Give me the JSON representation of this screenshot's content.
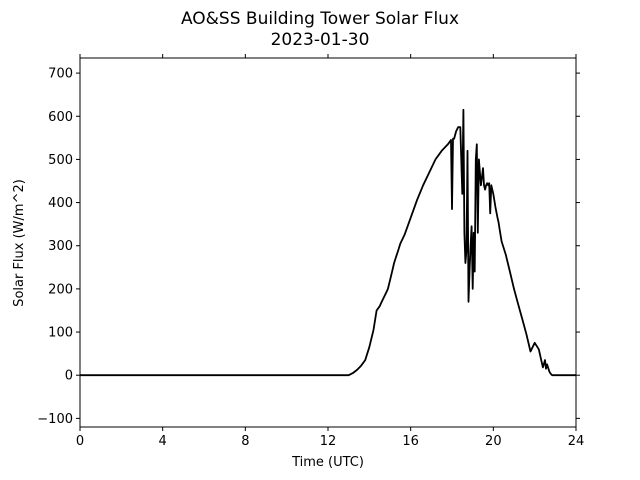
{
  "chart_data": {
    "type": "line",
    "title": "AO&SS Building Tower Solar Flux",
    "subtitle": "2023-01-30",
    "xlabel": "Time (UTC)",
    "ylabel": "Solar Flux (W/m^2)",
    "xlim": [
      0,
      24
    ],
    "ylim": [
      -120,
      735
    ],
    "xticks": [
      0,
      4,
      8,
      12,
      16,
      20,
      24
    ],
    "yticks": [
      -100,
      0,
      100,
      200,
      300,
      400,
      500,
      600,
      700
    ],
    "grid": false,
    "line_color": "#000000",
    "series": [
      {
        "x": [
          0,
          12.0,
          13.0,
          13.2,
          13.4,
          13.6,
          13.8,
          14.0,
          14.2,
          14.35,
          14.5,
          14.6,
          14.7,
          14.8,
          14.9,
          15.0,
          15.1,
          15.2,
          15.3,
          15.4,
          15.5,
          15.7,
          16.0,
          16.3,
          16.6,
          16.9,
          17.2,
          17.5,
          17.8,
          17.95,
          18.0,
          18.05,
          18.1,
          18.2,
          18.3,
          18.4,
          18.5,
          18.55,
          18.6,
          18.65,
          18.7,
          18.75,
          18.8,
          18.85,
          18.9,
          18.95,
          19.0,
          19.05,
          19.1,
          19.15,
          19.2,
          19.25,
          19.3,
          19.35,
          19.4,
          19.45,
          19.5,
          19.55,
          19.6,
          19.65,
          19.7,
          19.75,
          19.8,
          19.85,
          19.9,
          20.0,
          20.1,
          20.2,
          20.25,
          20.3,
          20.4,
          20.6,
          20.8,
          21.0,
          21.2,
          21.4,
          21.6,
          21.8,
          22.0,
          22.2,
          22.4,
          22.5,
          22.55,
          22.6,
          22.7,
          22.75,
          22.8,
          22.85,
          22.9,
          23.0,
          23.2,
          24.0
        ],
        "y": [
          0,
          0,
          0,
          5,
          12,
          22,
          35,
          65,
          105,
          150,
          160,
          170,
          180,
          190,
          200,
          220,
          240,
          260,
          275,
          290,
          305,
          325,
          365,
          405,
          440,
          470,
          500,
          520,
          535,
          545,
          385,
          548,
          548,
          565,
          575,
          575,
          420,
          615,
          330,
          260,
          290,
          520,
          170,
          245,
          300,
          345,
          200,
          330,
          240,
          500,
          535,
          330,
          500,
          470,
          440,
          460,
          480,
          440,
          430,
          440,
          445,
          440,
          445,
          375,
          440,
          420,
          390,
          365,
          355,
          340,
          310,
          280,
          240,
          200,
          165,
          130,
          95,
          55,
          75,
          60,
          18,
          35,
          15,
          25,
          10,
          5,
          2,
          0,
          0,
          0,
          0,
          0
        ]
      }
    ]
  }
}
